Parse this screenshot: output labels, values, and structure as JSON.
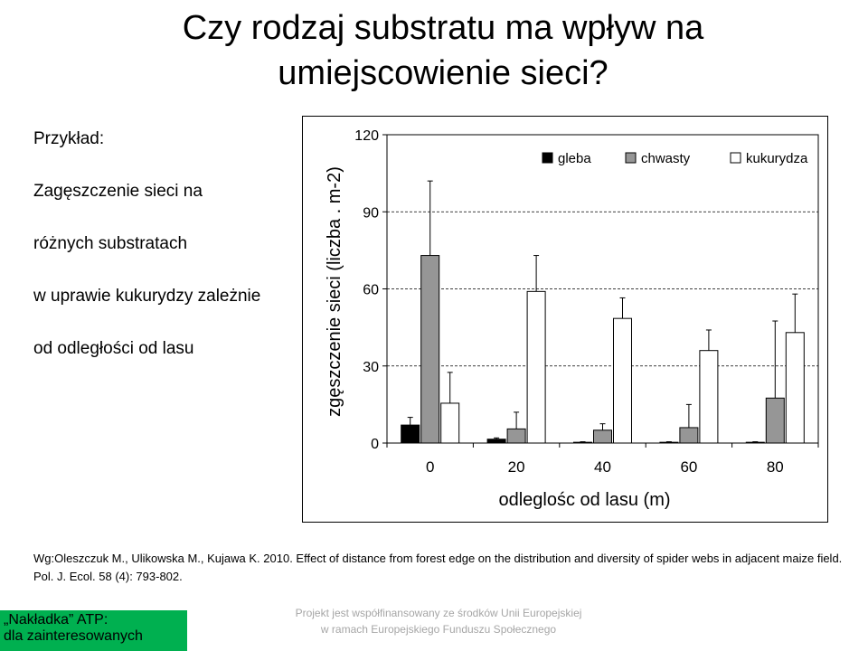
{
  "slide": {
    "title_line1": "Czy rodzaj substratu ma wpływ na",
    "title_line2": "umiejscowienie sieci?",
    "left_lines": [
      "Przykład:",
      "Zagęszczenie sieci na",
      "różnych substratach",
      "w uprawie kukurydzy zależnie",
      "od odległości od lasu"
    ],
    "citation": "Wg:Oleszczuk M., Ulikowska M., Kujawa K. 2010. Effect of distance from forest edge on the distribution and diversity of spider webs in adjacent maize field. Pol. J. Ecol. 58 (4): 793-802.",
    "footer_line1": "Projekt jest współfinansowany ze środków Unii Europejskiej",
    "footer_line2": "w ramach Europejskiego Funduszu Społecznego",
    "badge_line1": "„Nakładka” ATP:",
    "badge_line2": "dla zainteresowanych"
  },
  "colors": {
    "gleba": "#000000",
    "chwasty": "#969696",
    "kukurydza": "#ffffff",
    "badge": "#00b050",
    "footer": "#a6a6a6"
  },
  "chart_data": {
    "type": "bar",
    "title": "",
    "xlabel": "odleglośc od lasu (m)",
    "ylabel": "zgęszczenie sieci (liczba . m-2)",
    "categories": [
      "0",
      "20",
      "40",
      "60",
      "80"
    ],
    "ylim": [
      0,
      120
    ],
    "yticks": [
      0,
      30,
      60,
      90,
      120
    ],
    "grid": "dashed horizontal",
    "legend_position": "top-right",
    "error_bars": true,
    "series": [
      {
        "name": "gleba",
        "values": [
          7,
          1.5,
          0.3,
          0.3,
          0.3
        ],
        "errors": [
          3,
          0.5,
          0.2,
          0.2,
          0.2
        ]
      },
      {
        "name": "chwasty",
        "values": [
          73,
          5.5,
          5,
          6,
          17.5
        ],
        "errors": [
          29,
          6.5,
          2.5,
          9,
          30
        ]
      },
      {
        "name": "kukurydza",
        "values": [
          15.5,
          59,
          48.5,
          36,
          43
        ],
        "errors": [
          12,
          14,
          8,
          8,
          15
        ]
      }
    ]
  }
}
